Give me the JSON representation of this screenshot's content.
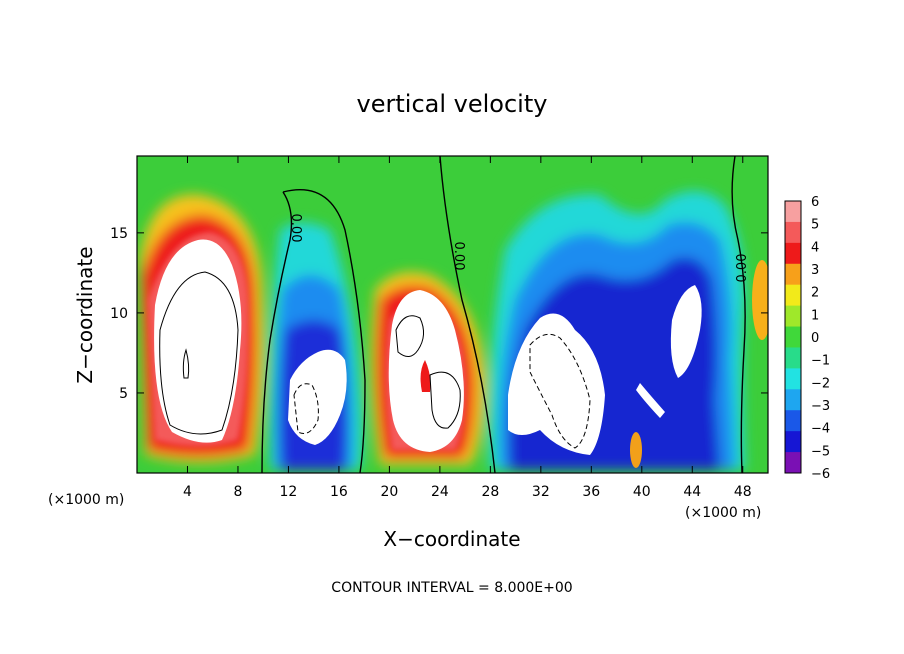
{
  "chart_data": {
    "type": "heatmap",
    "title": "vertical velocity",
    "xlabel": "X−coordinate",
    "ylabel": "Z−coordinate",
    "x_unit": "(×1000 m)",
    "z_unit": "(×1000 m)",
    "xlim": [
      0,
      50
    ],
    "ylim": [
      0,
      19.8
    ],
    "x_ticks": [
      4,
      8,
      12,
      16,
      20,
      24,
      28,
      32,
      36,
      40,
      44,
      48
    ],
    "y_ticks": [
      5,
      10,
      15
    ],
    "footer": "CONTOUR INTERVAL = 8.000E+00",
    "contour_label": "0.00",
    "colorbar": {
      "levels": [
        6,
        5,
        4,
        3,
        2,
        1,
        0,
        -1,
        -2,
        -3,
        -4,
        -5,
        -6
      ],
      "labels": [
        "6",
        "5",
        "4",
        "3",
        "2",
        "1",
        "0",
        "−1",
        "−2",
        "−3",
        "−4",
        "−5",
        "−6"
      ],
      "colors": [
        "#f7a0a0",
        "#f45a5a",
        "#ee1a1a",
        "#f7a01a",
        "#f2ea1a",
        "#9fe82a",
        "#40d83a",
        "#28dc8a",
        "#22e2e2",
        "#1ea6f0",
        "#1a58e8",
        "#1616d4",
        "#7a10b4"
      ]
    },
    "features": [
      {
        "name": "updraft",
        "x_center": 5,
        "z_center": 9.5,
        "peak": 6
      },
      {
        "name": "downdraft",
        "x_center": 14,
        "z_center": 7,
        "peak": -6
      },
      {
        "name": "updraft",
        "x_center": 23,
        "z_center": 8.5,
        "peak": 6
      },
      {
        "name": "downdraft",
        "x_center": 34,
        "z_center": 8,
        "peak": -6
      },
      {
        "name": "downdraft",
        "x_center": 44,
        "z_center": 9,
        "peak": -6
      }
    ]
  }
}
